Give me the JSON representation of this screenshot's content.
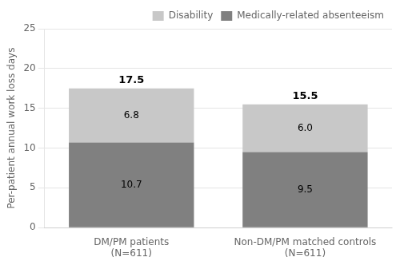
{
  "chart_data": {
    "type": "bar",
    "categories": [
      "DM/PM patients\n(N=611)",
      "Non-DM/PM matched controls\n(N=611)"
    ],
    "series": [
      {
        "name": "Medically-related absenteeism",
        "color": "#808080",
        "values": [
          10.7,
          9.5
        ],
        "value_labels": [
          "10.7",
          "9.5"
        ]
      },
      {
        "name": "Disability",
        "color": "#c8c8c8",
        "values": [
          6.8,
          6.0
        ],
        "value_labels": [
          "6.8",
          "6.0"
        ]
      }
    ],
    "totals": [
      17.5,
      15.5
    ],
    "ylabel": "Per-patient annual work loss days",
    "ylim": [
      0,
      25
    ],
    "yticks": [
      0,
      5,
      10,
      15,
      20,
      25
    ],
    "stacked": true,
    "data_labels": true,
    "grid": true,
    "legend": "upper right"
  }
}
